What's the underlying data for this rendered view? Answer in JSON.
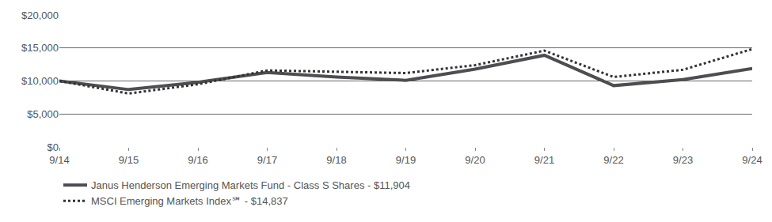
{
  "chart_data": {
    "type": "line",
    "categories": [
      "9/14",
      "9/15",
      "9/16",
      "9/17",
      "9/18",
      "9/19",
      "9/20",
      "9/21",
      "9/22",
      "9/23",
      "9/24"
    ],
    "series": [
      {
        "name": "Janus Henderson Emerging Markets Fund - Class S Shares - $11,904",
        "color": "#4d4d52",
        "line_style": "solid",
        "values": [
          10000,
          8700,
          9800,
          11300,
          10600,
          10100,
          11800,
          13900,
          9300,
          10200,
          11904
        ]
      },
      {
        "name": "MSCI Emerging Markets Index℠ - $14,837",
        "color": "#333333",
        "line_style": "dot",
        "values": [
          10000,
          8100,
          9500,
          11600,
          11400,
          11200,
          12400,
          14600,
          10600,
          11700,
          14837
        ]
      }
    ],
    "ylim": [
      0,
      20000
    ],
    "yticks": [
      {
        "value": 0,
        "label": "$0"
      },
      {
        "value": 5000,
        "label": "$5,000"
      },
      {
        "value": 10000,
        "label": "$10,000"
      },
      {
        "value": 15000,
        "label": "$15,000"
      },
      {
        "value": 20000,
        "label": "$20,000"
      }
    ],
    "grid": true,
    "legend": "bottom"
  }
}
